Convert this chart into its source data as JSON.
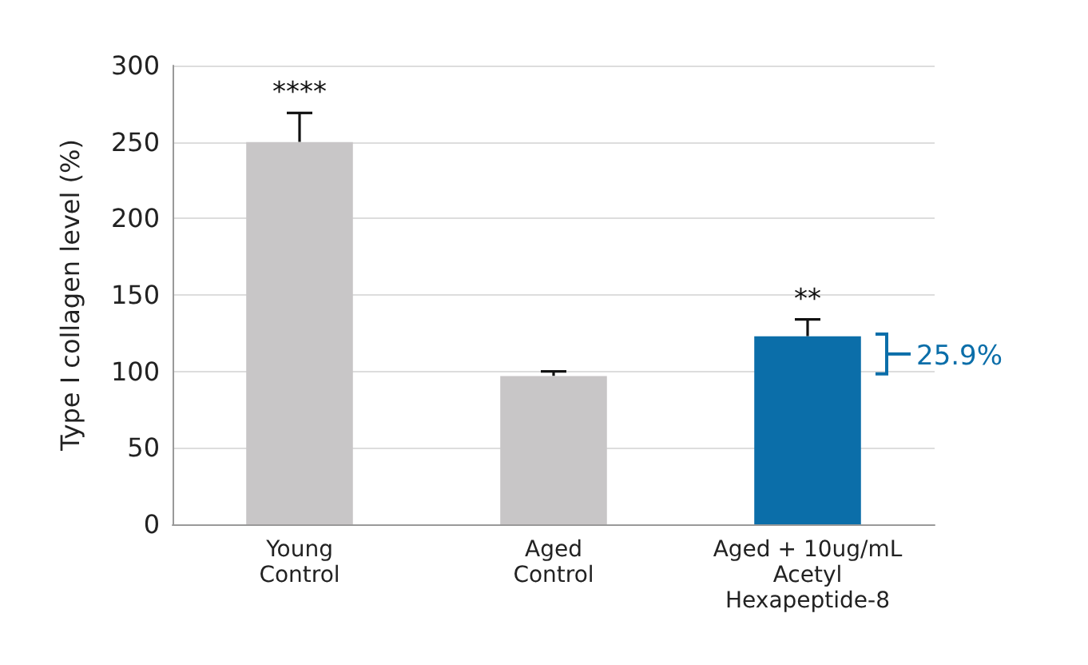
{
  "chart_data": {
    "type": "bar",
    "ylabel": "Type I collagen level (%)",
    "categories": [
      "Young\nControl",
      "Aged\nControl",
      "Aged + 10ug/mL\nAcetyl\nHexapeptide-8"
    ],
    "values": [
      250,
      97,
      123
    ],
    "colors": [
      "#c8c6c7",
      "#c8c6c7",
      "#0b6ea9"
    ],
    "errors": [
      [
        250,
        269
      ],
      [
        97,
        100
      ],
      [
        123,
        134
      ]
    ],
    "ylim": [
      0,
      300
    ],
    "yticks": [
      0,
      50,
      100,
      150,
      200,
      250,
      300
    ],
    "grid": "y",
    "annotations": [
      {
        "text": "****",
        "x": "Young\nControl",
        "y": 269
      },
      {
        "text": "**",
        "x": "Aged + 10ug/mL\nAcetyl\nHexapeptide-8",
        "y": 134
      },
      "25.9%"
    ]
  }
}
